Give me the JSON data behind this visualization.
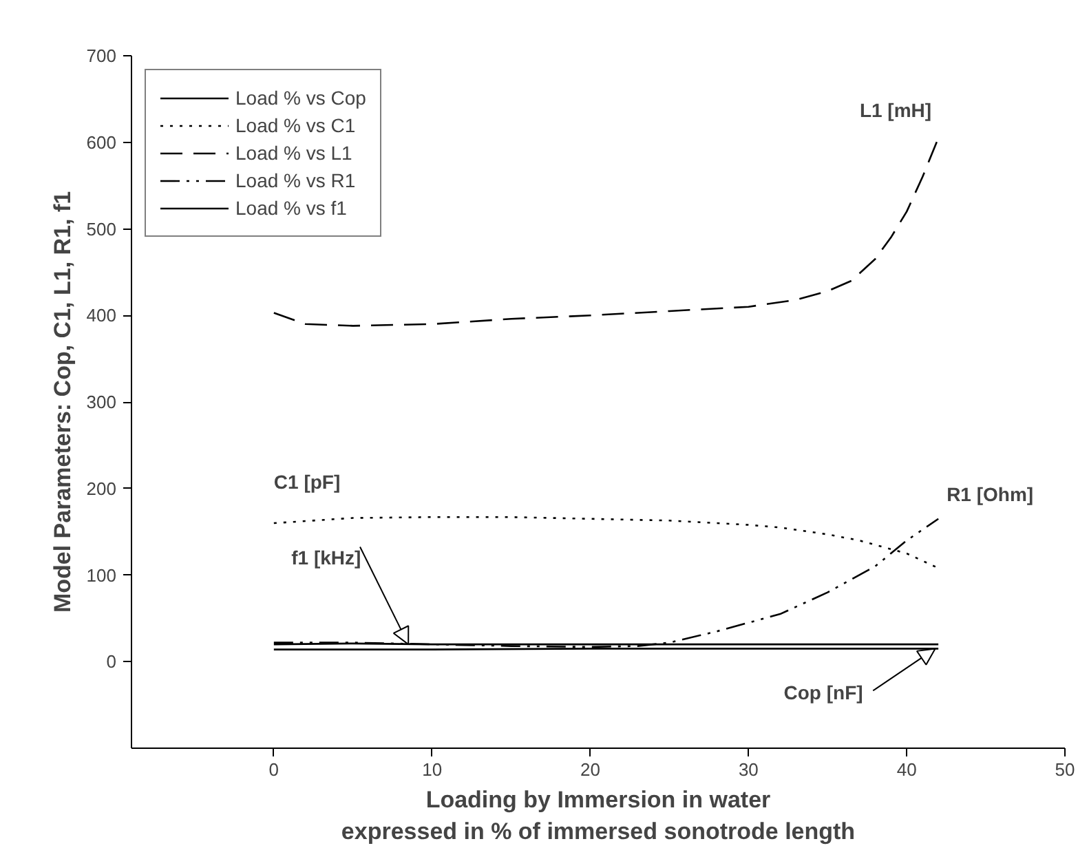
{
  "chart_data": {
    "type": "line",
    "xlabel": "Loading by Immersion in water\nexpressed in % of immersed sonotrode length",
    "ylabel": "Model Parameters: Cop, C1, L1, R1, f1",
    "xlim": [
      -9,
      50
    ],
    "ylim": [
      -100,
      700
    ],
    "xticks": [
      0,
      10,
      20,
      30,
      40,
      50
    ],
    "yticks": [
      0,
      100,
      200,
      300,
      400,
      500,
      600,
      700
    ],
    "grid": false,
    "legend": "top left",
    "marker": "none",
    "series": [
      {
        "name": "Load % vs Cop",
        "color": "#000000",
        "line_style": "solid",
        "x": [
          0,
          10,
          20,
          30,
          42
        ],
        "values": [
          14,
          14,
          15,
          15,
          15
        ]
      },
      {
        "name": "Load % vs C1",
        "color": "#000000",
        "line_style": "dotted",
        "x": [
          0,
          5,
          10,
          15,
          20,
          25,
          30,
          32,
          35,
          37,
          40,
          42
        ],
        "values": [
          160,
          166,
          167,
          167,
          165,
          163,
          158,
          155,
          147,
          140,
          125,
          108
        ]
      },
      {
        "name": "Load % vs L1",
        "color": "#000000",
        "line_style": "dashed",
        "x": [
          0,
          2,
          5,
          10,
          15,
          20,
          25,
          30,
          33,
          35,
          36.5,
          38,
          39,
          40,
          41,
          42
        ],
        "values": [
          403,
          390,
          388,
          390,
          396,
          400,
          405,
          410,
          418,
          428,
          440,
          465,
          490,
          520,
          560,
          605
        ]
      },
      {
        "name": "Load % vs R1",
        "color": "#000000",
        "line_style": "dashdot",
        "x": [
          0,
          5,
          10,
          15,
          20,
          23,
          25,
          28,
          30,
          32,
          35,
          38,
          40,
          42
        ],
        "values": [
          22,
          22,
          20,
          18,
          17,
          18,
          22,
          35,
          45,
          55,
          80,
          110,
          140,
          165
        ]
      },
      {
        "name": "Load % vs f1",
        "color": "#000000",
        "line_style": "solid",
        "x": [
          0,
          5,
          10,
          20,
          30,
          42
        ],
        "values": [
          20,
          21,
          20,
          20,
          20,
          20
        ]
      }
    ],
    "annotations": [
      {
        "text": "L1 [mH]",
        "x": 42,
        "y": 605
      },
      {
        "text": "C1 [pF]",
        "x": 0,
        "y": 160
      },
      {
        "text": "R1 [Ohm]",
        "x": 42,
        "y": 165
      },
      {
        "text": "f1 [kHz]",
        "x": 8.5,
        "y": 20
      },
      {
        "text": "Cop [nF]",
        "x": 41.8,
        "y": 15
      }
    ]
  }
}
